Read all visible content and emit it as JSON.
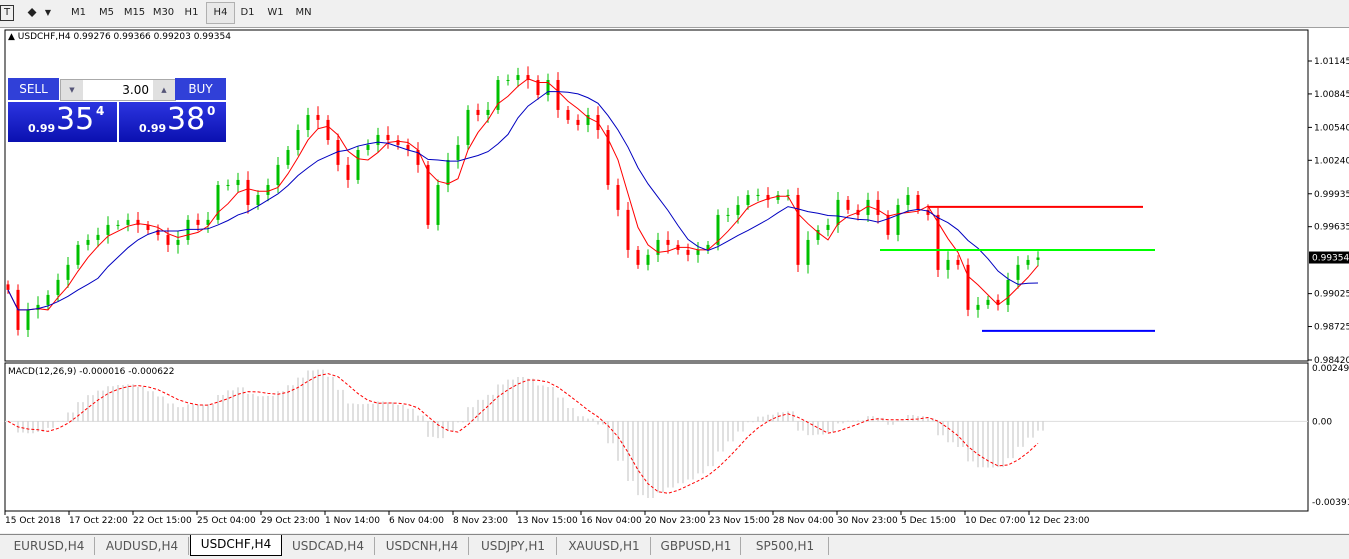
{
  "toolbar": {
    "timeframes": [
      "M1",
      "M5",
      "M15",
      "M30",
      "H1",
      "H4",
      "D1",
      "W1",
      "MN"
    ],
    "active": "H4",
    "icons": [
      "text-tool-icon",
      "shapes-tool-icon",
      "dropdown-icon"
    ]
  },
  "header": {
    "symbol_line": "USDCHF,H4  0.99276 0.99366 0.99203 0.99354"
  },
  "trade_panel": {
    "sell_label": "SELL",
    "buy_label": "BUY",
    "lot": "3.00",
    "sell_prefix": "0.99",
    "sell_big": "35",
    "sell_sup": "4",
    "buy_prefix": "0.99",
    "buy_big": "38",
    "buy_sup": "0"
  },
  "macd_label": "MACD(12,26,9) -0.000016 -0.000622",
  "tabs": [
    "EURUSD,H4",
    "AUDUSD,H4",
    "USDCHF,H4",
    "USDCAD,H4",
    "USDCNH,H4",
    "USDJPY,H1",
    "XAUUSD,H1",
    "GBPUSD,H1",
    "SP500,H1"
  ],
  "active_tab": "USDCHF,H4",
  "colors": {
    "bull": "#00c000",
    "bear": "#ff0000",
    "ma_fast": "#ff0000",
    "ma_slow": "#0000c0",
    "macd_hist": "#c0c0c0",
    "macd_signal": "#ff0000"
  },
  "chart_data": {
    "type": "candlestick",
    "symbol": "USDCHF",
    "timeframe": "H4",
    "price_ticks": [
      "1.01145",
      "1.00845",
      "1.00540",
      "1.00240",
      "0.99935",
      "0.99635",
      "0.99025",
      "0.98725",
      "0.98420"
    ],
    "price_range": [
      0.9842,
      1.01145
    ],
    "current_price": "0.99354",
    "macd_ticks": [
      "0.002492",
      "0.00",
      "-0.003911"
    ],
    "macd_range": [
      -0.003911,
      0.002492
    ],
    "time_labels": [
      "15 Oct 2018",
      "17 Oct 22:00",
      "22 Oct 15:00",
      "25 Oct 04:00",
      "29 Oct 23:00",
      "1 Nov 14:00",
      "6 Nov 04:00",
      "8 Nov 23:00",
      "13 Nov 15:00",
      "16 Nov 04:00",
      "20 Nov 23:00",
      "23 Nov 15:00",
      "28 Nov 04:00",
      "30 Nov 23:00",
      "5 Dec 15:00",
      "10 Dec 07:00",
      "12 Dec 23:00"
    ],
    "closes": [
      0.99059,
      0.98694,
      0.98877,
      0.98922,
      0.99013,
      0.9915,
      0.99287,
      0.99469,
      0.99514,
      0.9956,
      0.99651,
      0.99651,
      0.99697,
      0.99651,
      0.99605,
      0.9956,
      0.99469,
      0.99514,
      0.99697,
      0.99651,
      0.99697,
      1.00015,
      1.00015,
      1.00061,
      0.99833,
      0.99924,
      1.00015,
      1.00198,
      1.00334,
      1.00516,
      1.00653,
      1.00608,
      1.00425,
      1.00198,
      1.00061,
      1.00334,
      1.0038,
      1.00471,
      1.00425,
      1.0038,
      1.00334,
      1.00198,
      0.99651,
      1.00015,
      1.00243,
      1.0038,
      1.00699,
      1.00653,
      1.00699,
      1.00972,
      1.00972,
      1.01017,
      1.00972,
      1.00835,
      1.00972,
      1.00699,
      1.00608,
      1.00562,
      1.00653,
      1.00516,
      1.00015,
      0.99788,
      0.99423,
      0.99287,
      0.99378,
      0.99514,
      0.99469,
      0.99423,
      0.99378,
      0.99423,
      0.99469,
      0.99742,
      0.99742,
      0.99833,
      0.99924,
      0.99924,
      0.99879,
      0.99924,
      0.99924,
      0.99287,
      0.99514,
      0.99605,
      0.99651,
      0.99879,
      0.99788,
      0.99742,
      0.99879,
      0.99742,
      0.9956,
      0.99833,
      0.99924,
      0.99788,
      0.99742,
      0.99241,
      0.99332,
      0.99287,
      0.98877,
      0.98922,
      0.98968,
      0.98922,
      0.9915,
      0.99287,
      0.99332,
      0.99354
    ],
    "horizontal_lines": [
      {
        "price": 0.99815,
        "color": "#ff0000"
      },
      {
        "price": 0.99423,
        "color": "#00ff00"
      },
      {
        "price": 0.98685,
        "color": "#0000ff"
      }
    ],
    "grid": false
  }
}
